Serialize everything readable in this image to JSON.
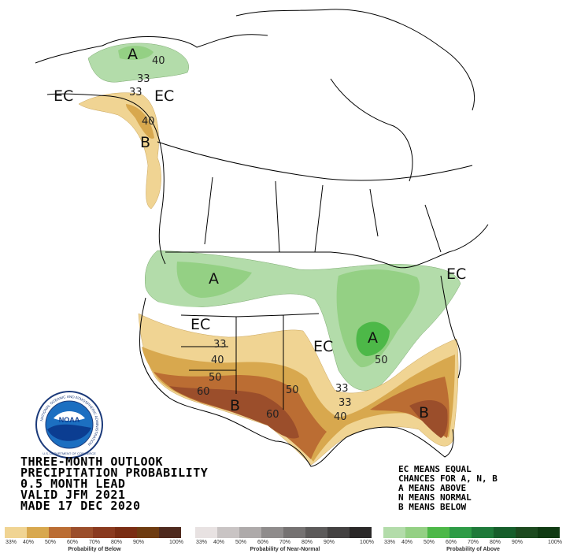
{
  "title_lines": [
    "THREE-MONTH OUTLOOK",
    "PRECIPITATION PROBABILITY",
    "0.5 MONTH LEAD",
    "VALID JFM 2021",
    "MADE 17 DEC 2020"
  ],
  "key_lines": [
    "EC MEANS EQUAL",
    "CHANCES FOR A, N, B",
    "A MEANS ABOVE",
    "N MEANS NORMAL",
    "B MEANS BELOW"
  ],
  "map_labels": {
    "alaska_above": "A",
    "alaska_ec_west": "EC",
    "alaska_ec_east": "EC",
    "alaska_below": "B",
    "ak_40_north": "40",
    "ak_33_north": "33",
    "ak_33_south": "33",
    "ak_40_south": "40",
    "northwest_above": "A",
    "west_ec": "EC",
    "central_ec": "EC",
    "ohio_above": "A",
    "northeast_ec": "EC",
    "southwest_below": "B",
    "southeast_below": "B",
    "c_33_west": "33",
    "c_40_west": "40",
    "c_50_west": "50",
    "c_60_west": "60",
    "c_60_texas": "60",
    "c_50_texas": "50",
    "c_33_east": "33",
    "c_33_east2": "33",
    "c_40_east": "40",
    "c_50_ohio": "50"
  },
  "legend": {
    "below": {
      "caption": "Probability of Below",
      "ticks": [
        "33%",
        "40%",
        "50%",
        "60%",
        "70%",
        "80%",
        "90%",
        "100%"
      ],
      "colors": [
        "#f0d493",
        "#d8a84e",
        "#bb6d33",
        "#9b4e2b",
        "#8a3a1f",
        "#7a2d13",
        "#6e3b10",
        "#4f2a1e"
      ]
    },
    "normal": {
      "caption": "Probability of Near-Normal",
      "ticks": [
        "33%",
        "40%",
        "50%",
        "60%",
        "70%",
        "80%",
        "90%",
        "100%"
      ],
      "colors": [
        "#e8e2e2",
        "#c9c4c4",
        "#aeaaaa",
        "#8f8c8c",
        "#757272",
        "#5c5a5a",
        "#434141",
        "#2a2828"
      ]
    },
    "above": {
      "caption": "Probability of Above",
      "ticks": [
        "33%",
        "40%",
        "50%",
        "60%",
        "70%",
        "80%",
        "90%",
        "100%"
      ],
      "colors": [
        "#b3dcaa",
        "#94d084",
        "#4db848",
        "#2e9b46",
        "#1f7a3a",
        "#165e2b",
        "#1c4a1f",
        "#0f3a12"
      ]
    }
  },
  "logo": {
    "inner_text": "NOAA",
    "ring_text": "NATIONAL OCEANIC AND ATMOSPHERIC ADMINISTRATION",
    "bottom_text": "U.S. DEPARTMENT OF COMMERCE"
  }
}
